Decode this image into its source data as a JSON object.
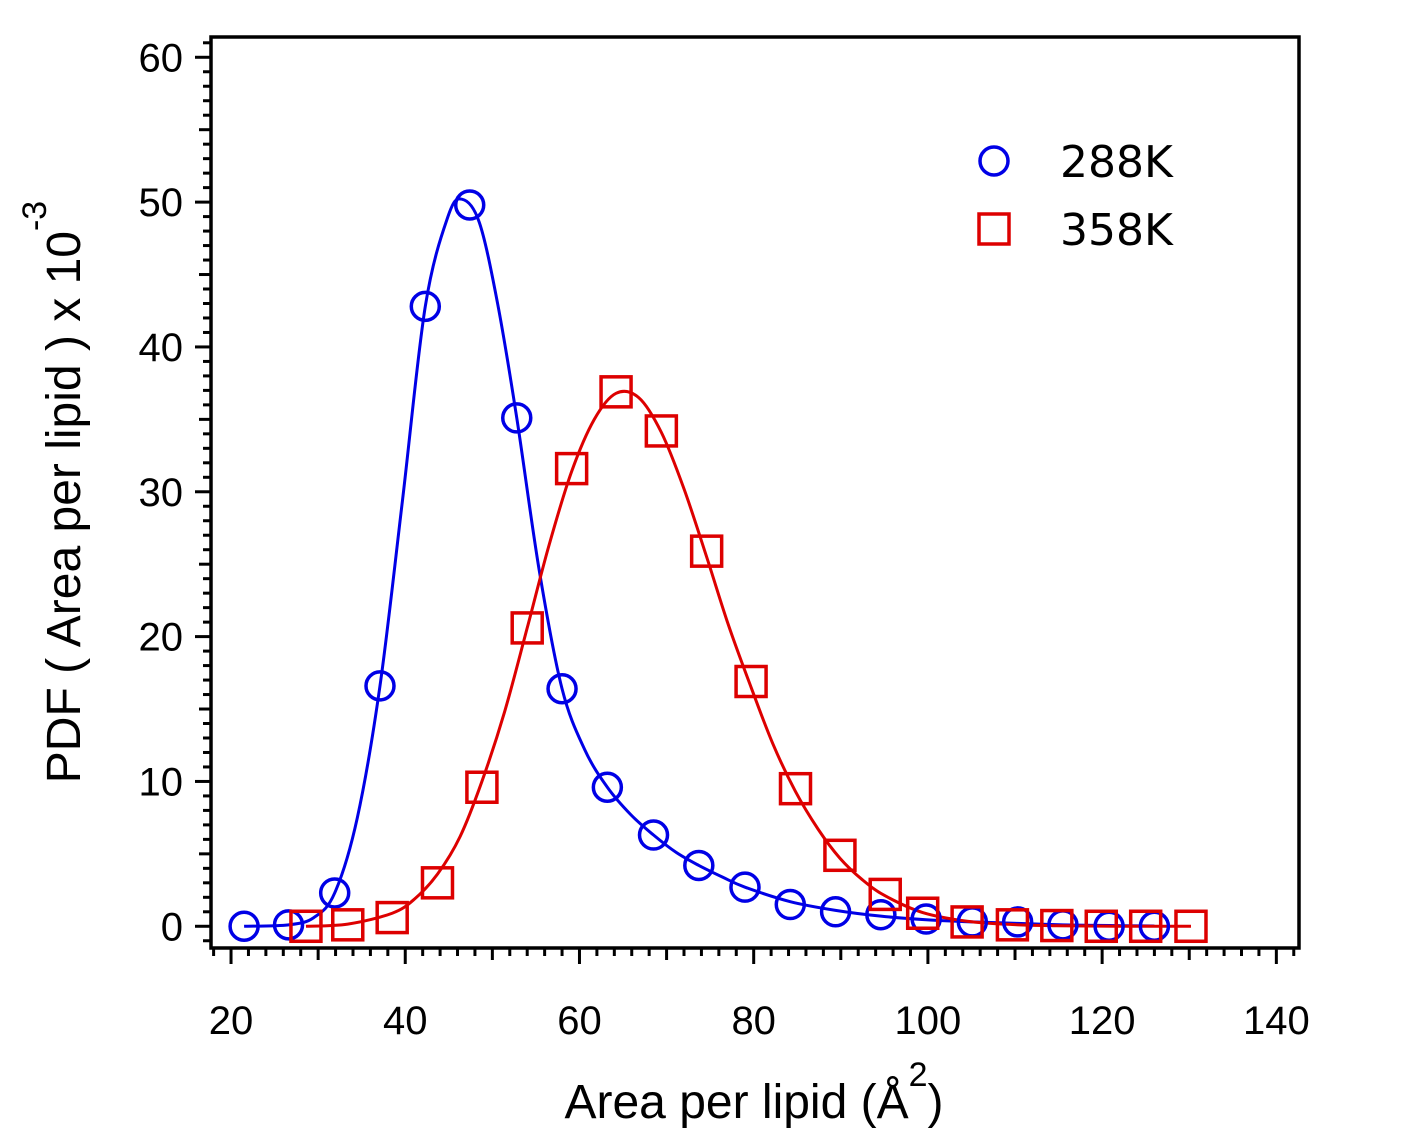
{
  "chart_data": {
    "type": "line",
    "title": "",
    "xlabel": "Area per lipid (Å",
    "xlabel_sup": "2",
    "xlabel_close": ")",
    "ylabel": "PDF ( Area per lipid ) x 10",
    "ylabel_sup": "-3",
    "xlim": [
      17.7,
      142.6
    ],
    "ylim": [
      -1.5,
      61.4
    ],
    "x_ticks": [
      20,
      40,
      60,
      80,
      100,
      120,
      140
    ],
    "y_ticks": [
      0,
      10,
      20,
      30,
      40,
      50,
      60
    ],
    "legend_position": "top-right",
    "series": [
      {
        "name": "288K",
        "marker": "circle",
        "color": "#0000e6",
        "points": [
          {
            "x": 21.5,
            "y": 0.0
          },
          {
            "x": 26.6,
            "y": 0.1
          },
          {
            "x": 31.9,
            "y": 2.3
          },
          {
            "x": 37.1,
            "y": 16.6
          },
          {
            "x": 42.3,
            "y": 42.8
          },
          {
            "x": 47.4,
            "y": 49.8
          },
          {
            "x": 52.8,
            "y": 35.1
          },
          {
            "x": 58.0,
            "y": 16.4
          },
          {
            "x": 63.2,
            "y": 9.6
          },
          {
            "x": 68.5,
            "y": 6.3
          },
          {
            "x": 73.7,
            "y": 4.2
          },
          {
            "x": 79.0,
            "y": 2.7
          },
          {
            "x": 84.2,
            "y": 1.5
          },
          {
            "x": 89.4,
            "y": 1.0
          },
          {
            "x": 94.6,
            "y": 0.8
          },
          {
            "x": 99.8,
            "y": 0.5
          },
          {
            "x": 105.1,
            "y": 0.3
          },
          {
            "x": 110.3,
            "y": 0.3
          },
          {
            "x": 115.5,
            "y": 0.1
          },
          {
            "x": 120.8,
            "y": 0.0
          },
          {
            "x": 126.0,
            "y": 0.0
          }
        ],
        "fit_curve": [
          {
            "x": 21.5,
            "y": 0.0
          },
          {
            "x": 26.6,
            "y": 0.1
          },
          {
            "x": 29.5,
            "y": 0.6
          },
          {
            "x": 31.9,
            "y": 2.3
          },
          {
            "x": 34.5,
            "y": 7.5
          },
          {
            "x": 37.1,
            "y": 16.6
          },
          {
            "x": 39.7,
            "y": 29.5
          },
          {
            "x": 42.3,
            "y": 42.8
          },
          {
            "x": 44.9,
            "y": 49.0
          },
          {
            "x": 46.5,
            "y": 50.2
          },
          {
            "x": 48.5,
            "y": 48.6
          },
          {
            "x": 50.6,
            "y": 43.0
          },
          {
            "x": 52.8,
            "y": 35.1
          },
          {
            "x": 55.4,
            "y": 24.5
          },
          {
            "x": 58.0,
            "y": 16.4
          },
          {
            "x": 60.6,
            "y": 12.2
          },
          {
            "x": 63.2,
            "y": 9.6
          },
          {
            "x": 65.9,
            "y": 7.7
          },
          {
            "x": 68.5,
            "y": 6.3
          },
          {
            "x": 71.1,
            "y": 5.1
          },
          {
            "x": 73.7,
            "y": 4.2
          },
          {
            "x": 76.4,
            "y": 3.4
          },
          {
            "x": 79.0,
            "y": 2.7
          },
          {
            "x": 84.2,
            "y": 1.7
          },
          {
            "x": 89.4,
            "y": 1.1
          },
          {
            "x": 94.6,
            "y": 0.7
          },
          {
            "x": 99.8,
            "y": 0.45
          },
          {
            "x": 105.1,
            "y": 0.3
          },
          {
            "x": 110.3,
            "y": 0.2
          },
          {
            "x": 115.5,
            "y": 0.1
          },
          {
            "x": 120.8,
            "y": 0.05
          },
          {
            "x": 126.0,
            "y": 0.02
          }
        ]
      },
      {
        "name": "358K",
        "marker": "square",
        "color": "#dd0000",
        "points": [
          {
            "x": 28.6,
            "y": 0.0
          },
          {
            "x": 33.4,
            "y": 0.1
          },
          {
            "x": 38.5,
            "y": 0.6
          },
          {
            "x": 43.7,
            "y": 3.0
          },
          {
            "x": 48.8,
            "y": 9.6
          },
          {
            "x": 54.0,
            "y": 20.6
          },
          {
            "x": 59.1,
            "y": 31.6
          },
          {
            "x": 64.2,
            "y": 36.9
          },
          {
            "x": 69.4,
            "y": 34.2
          },
          {
            "x": 74.6,
            "y": 25.9
          },
          {
            "x": 79.7,
            "y": 16.9
          },
          {
            "x": 84.8,
            "y": 9.5
          },
          {
            "x": 89.9,
            "y": 4.9
          },
          {
            "x": 95.1,
            "y": 2.2
          },
          {
            "x": 99.4,
            "y": 0.9
          },
          {
            "x": 104.5,
            "y": 0.3
          },
          {
            "x": 109.7,
            "y": 0.1
          },
          {
            "x": 114.8,
            "y": 0.05
          },
          {
            "x": 119.9,
            "y": 0.0
          },
          {
            "x": 125.0,
            "y": 0.0
          },
          {
            "x": 130.2,
            "y": 0.0
          }
        ],
        "fit_curve": [
          {
            "x": 28.6,
            "y": 0.0
          },
          {
            "x": 33.4,
            "y": 0.15
          },
          {
            "x": 38.5,
            "y": 0.9
          },
          {
            "x": 41.1,
            "y": 1.9
          },
          {
            "x": 43.7,
            "y": 3.6
          },
          {
            "x": 46.3,
            "y": 6.2
          },
          {
            "x": 48.8,
            "y": 10.0
          },
          {
            "x": 51.4,
            "y": 14.8
          },
          {
            "x": 54.0,
            "y": 20.6
          },
          {
            "x": 56.5,
            "y": 26.3
          },
          {
            "x": 59.1,
            "y": 31.4
          },
          {
            "x": 61.7,
            "y": 35.0
          },
          {
            "x": 64.2,
            "y": 36.8
          },
          {
            "x": 66.8,
            "y": 36.5
          },
          {
            "x": 69.4,
            "y": 34.1
          },
          {
            "x": 72.0,
            "y": 30.2
          },
          {
            "x": 74.6,
            "y": 25.5
          },
          {
            "x": 77.1,
            "y": 20.8
          },
          {
            "x": 79.7,
            "y": 16.5
          },
          {
            "x": 82.2,
            "y": 12.6
          },
          {
            "x": 84.8,
            "y": 9.3
          },
          {
            "x": 87.4,
            "y": 6.7
          },
          {
            "x": 89.9,
            "y": 4.7
          },
          {
            "x": 92.5,
            "y": 3.2
          },
          {
            "x": 95.1,
            "y": 2.1
          },
          {
            "x": 99.4,
            "y": 0.95
          },
          {
            "x": 104.5,
            "y": 0.35
          },
          {
            "x": 109.7,
            "y": 0.12
          },
          {
            "x": 114.8,
            "y": 0.04
          },
          {
            "x": 119.9,
            "y": 0.01
          },
          {
            "x": 125.0,
            "y": 0.0
          },
          {
            "x": 130.2,
            "y": 0.0
          }
        ]
      }
    ]
  }
}
